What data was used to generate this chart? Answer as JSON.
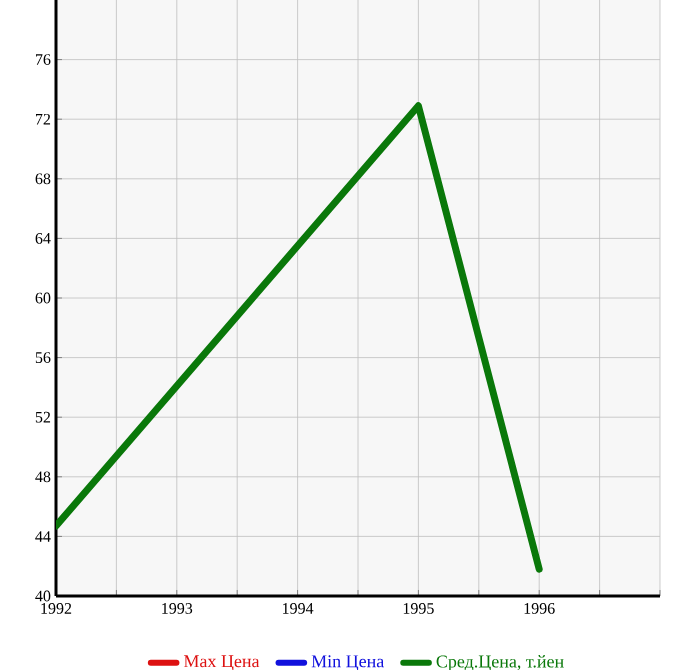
{
  "chart_data": {
    "type": "line",
    "x": [
      1992,
      1995,
      1996
    ],
    "series": [
      {
        "name": "Max Цена",
        "color": "#dd1111",
        "values": [
          null,
          null,
          null
        ]
      },
      {
        "name": "Min Цена",
        "color": "#1111dd",
        "values": [
          null,
          null,
          null
        ]
      },
      {
        "name": "Сред.Цена, т.йен",
        "color": "#0a780a",
        "values": [
          44.7,
          72.9,
          41.8
        ]
      }
    ],
    "xlim": [
      1992,
      1997
    ],
    "xticks": [
      1992,
      {
        "value": 1992.5,
        "label": null
      },
      1993,
      {
        "value": 1993.5,
        "label": null
      },
      1994,
      {
        "value": 1994.5,
        "label": null
      },
      1995,
      {
        "value": 1995.5,
        "label": null
      },
      1996,
      {
        "value": 1996.5,
        "label": null
      },
      {
        "value": 1997,
        "label": null
      }
    ],
    "ylim": [
      40,
      80
    ],
    "yticks": [
      40,
      44,
      48,
      52,
      56,
      60,
      64,
      68,
      72,
      76
    ],
    "grid": true,
    "legend": "bottom",
    "marker": "none",
    "line_style": "solid"
  }
}
